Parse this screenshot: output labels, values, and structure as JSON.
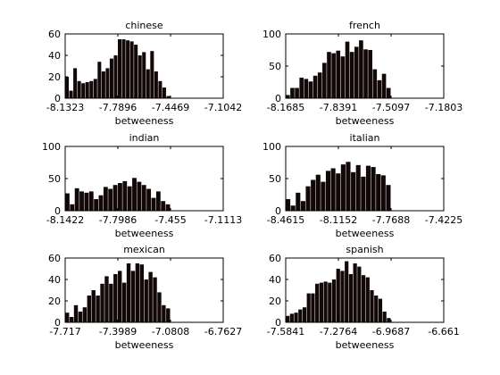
{
  "chart_data": [
    {
      "type": "bar",
      "title": "chinese",
      "xlabel": "betweeness",
      "ylabel": "",
      "xticks": [
        "-8.1323",
        "-7.7896",
        "-7.4469",
        "-7.1042"
      ],
      "xlim": [
        -8.1323,
        -7.1042
      ],
      "ylim": [
        0,
        60
      ],
      "yticks": [
        "0",
        "20",
        "40",
        "60"
      ],
      "values": [
        20,
        7,
        28,
        16,
        14,
        15,
        16,
        18,
        34,
        25,
        28,
        37,
        40,
        55,
        55,
        54,
        53,
        50,
        40,
        43,
        27,
        44,
        25,
        16,
        10,
        2
      ],
      "grid": false
    },
    {
      "type": "bar",
      "title": "french",
      "xlabel": "betweeness",
      "ylabel": "",
      "xticks": [
        "-8.1685",
        "-7.8391",
        "-7.5097",
        "-7.1803"
      ],
      "xlim": [
        -8.1685,
        -7.1803
      ],
      "ylim": [
        0,
        100
      ],
      "yticks": [
        "0",
        "50",
        "100"
      ],
      "values": [
        5,
        16,
        16,
        32,
        30,
        26,
        35,
        40,
        55,
        72,
        70,
        74,
        65,
        88,
        72,
        80,
        90,
        76,
        75,
        45,
        28,
        38,
        16
      ],
      "grid": false
    },
    {
      "type": "bar",
      "title": "indian",
      "xlabel": "betweeness",
      "ylabel": "",
      "xticks": [
        "-8.1422",
        "-7.7986",
        "-7.455",
        "-7.1113"
      ],
      "xlim": [
        -8.1422,
        -7.1113
      ],
      "ylim": [
        0,
        100
      ],
      "yticks": [
        "0",
        "50",
        "100"
      ],
      "values": [
        27,
        10,
        35,
        30,
        28,
        30,
        18,
        24,
        37,
        34,
        40,
        43,
        46,
        38,
        51,
        45,
        40,
        34,
        20,
        30,
        15,
        10
      ],
      "grid": false
    },
    {
      "type": "bar",
      "title": "italian",
      "xlabel": "betweeness",
      "ylabel": "",
      "xticks": [
        "-8.4615",
        "-8.1152",
        "-7.7688",
        "-7.4225"
      ],
      "xlim": [
        -8.4615,
        -7.4225
      ],
      "ylim": [
        0,
        100
      ],
      "yticks": [
        "0",
        "50",
        "100"
      ],
      "values": [
        18,
        8,
        28,
        15,
        38,
        48,
        56,
        45,
        62,
        66,
        58,
        72,
        76,
        60,
        71,
        53,
        70,
        68,
        57,
        55,
        40
      ],
      "grid": false
    },
    {
      "type": "bar",
      "title": "mexican",
      "xlabel": "betweeness",
      "ylabel": "",
      "xticks": [
        "-7.717",
        "-7.3989",
        "-7.0808",
        "-6.7627"
      ],
      "xlim": [
        -7.717,
        -6.7627
      ],
      "ylim": [
        0,
        60
      ],
      "yticks": [
        "0",
        "20",
        "40",
        "60"
      ],
      "values": [
        9,
        5,
        16,
        10,
        14,
        25,
        30,
        25,
        36,
        43,
        36,
        45,
        48,
        37,
        55,
        48,
        55,
        54,
        40,
        47,
        42,
        28,
        16,
        13
      ],
      "grid": false
    },
    {
      "type": "bar",
      "title": "spanish",
      "xlabel": "betweeness",
      "ylabel": "",
      "xticks": [
        "-7.5841",
        "-7.2764",
        "-6.9687",
        "-6.661"
      ],
      "xlim": [
        -7.5841,
        -6.661
      ],
      "ylim": [
        0,
        60
      ],
      "yticks": [
        "0",
        "20",
        "40",
        "60"
      ],
      "values": [
        6,
        8,
        9,
        12,
        14,
        27,
        27,
        36,
        37,
        38,
        37,
        40,
        50,
        48,
        57,
        45,
        55,
        52,
        44,
        42,
        30,
        25,
        22,
        10,
        4
      ],
      "grid": false
    }
  ]
}
